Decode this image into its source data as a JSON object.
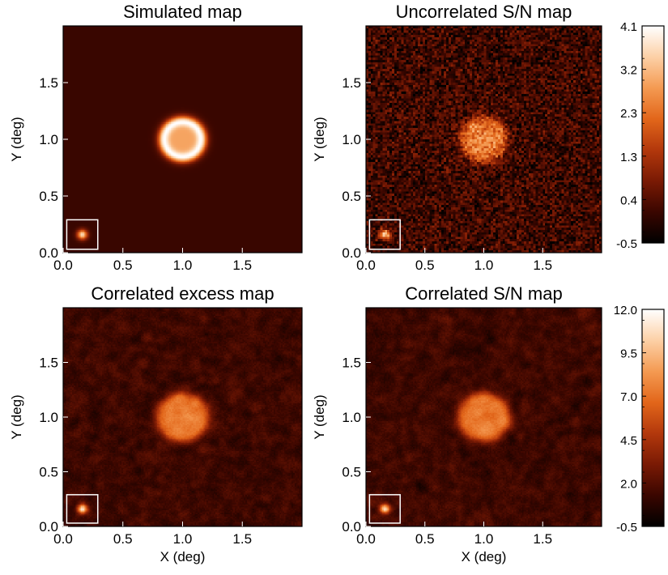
{
  "chart_data": [
    {
      "type": "heatmap",
      "title": "Simulated map",
      "xlabel": "",
      "ylabel": "Y (deg)",
      "xlim": [
        0.0,
        2.0
      ],
      "ylim": [
        0.0,
        2.0
      ],
      "xticks": [
        "0.0",
        "0.5",
        "1.0",
        "1.5"
      ],
      "yticks": [
        "0.0",
        "0.5",
        "1.0",
        "1.5"
      ],
      "colormap": "red-temperature",
      "source": {
        "kind": "ring",
        "center_deg": [
          1.0,
          1.0
        ],
        "radius_deg": 0.2
      },
      "psf_inset": {
        "center_deg": [
          0.16,
          0.16
        ],
        "sigma_deg": 0.03
      },
      "noise": "none",
      "colorbar_ref": 0
    },
    {
      "type": "heatmap",
      "title": "Uncorrelated S/N map",
      "xlabel": "",
      "ylabel": "Y (deg)",
      "xlim": [
        0.0,
        2.0
      ],
      "ylim": [
        0.0,
        2.0
      ],
      "xticks": [
        "0.0",
        "0.5",
        "1.0",
        "1.5"
      ],
      "yticks": [
        "0.0",
        "0.5",
        "1.0",
        "1.5"
      ],
      "colormap": "red-temperature",
      "source": {
        "kind": "disk",
        "center_deg": [
          1.0,
          1.0
        ],
        "radius_deg": 0.2
      },
      "psf_inset": {
        "center_deg": [
          0.16,
          0.16
        ],
        "sigma_deg": 0.03
      },
      "noise": "uncorrelated",
      "colorbar_ref": 0
    },
    {
      "type": "heatmap",
      "title": "Correlated excess map",
      "xlabel": "X (deg)",
      "ylabel": "Y (deg)",
      "xlim": [
        0.0,
        2.0
      ],
      "ylim": [
        0.0,
        2.0
      ],
      "xticks": [
        "0.0",
        "0.5",
        "1.0",
        "1.5"
      ],
      "yticks": [
        "0.0",
        "0.5",
        "1.0",
        "1.5"
      ],
      "colormap": "red-temperature",
      "source": {
        "kind": "disk",
        "center_deg": [
          1.0,
          1.0
        ],
        "radius_deg": 0.22
      },
      "psf_inset": {
        "center_deg": [
          0.16,
          0.16
        ],
        "sigma_deg": 0.03
      },
      "noise": "correlated",
      "colorbar_ref": 1
    },
    {
      "type": "heatmap",
      "title": "Correlated S/N map",
      "xlabel": "X (deg)",
      "ylabel": "Y (deg)",
      "xlim": [
        0.0,
        2.0
      ],
      "ylim": [
        0.0,
        2.0
      ],
      "xticks": [
        "0.0",
        "0.5",
        "1.0",
        "1.5"
      ],
      "yticks": [
        "0.0",
        "0.5",
        "1.0",
        "1.5"
      ],
      "colormap": "red-temperature",
      "source": {
        "kind": "disk",
        "center_deg": [
          1.0,
          1.0
        ],
        "radius_deg": 0.22
      },
      "psf_inset": {
        "center_deg": [
          0.16,
          0.16
        ],
        "sigma_deg": 0.03
      },
      "noise": "correlated",
      "colorbar_ref": 1
    }
  ],
  "colorbars": [
    {
      "min": -0.5,
      "max": 4.1,
      "ticks": [
        "4.1",
        "3.2",
        "2.3",
        "1.3",
        "0.4",
        "-0.5"
      ]
    },
    {
      "min": -0.5,
      "max": 12.0,
      "ticks": [
        "12.0",
        "9.5",
        "7.0",
        "4.5",
        "2.0",
        "-0.5"
      ]
    }
  ],
  "colormap_stops": [
    "#000000",
    "#3a0600",
    "#7a1a04",
    "#b3380c",
    "#e2661a",
    "#f49a52",
    "#fcd0a6",
    "#ffffff"
  ]
}
